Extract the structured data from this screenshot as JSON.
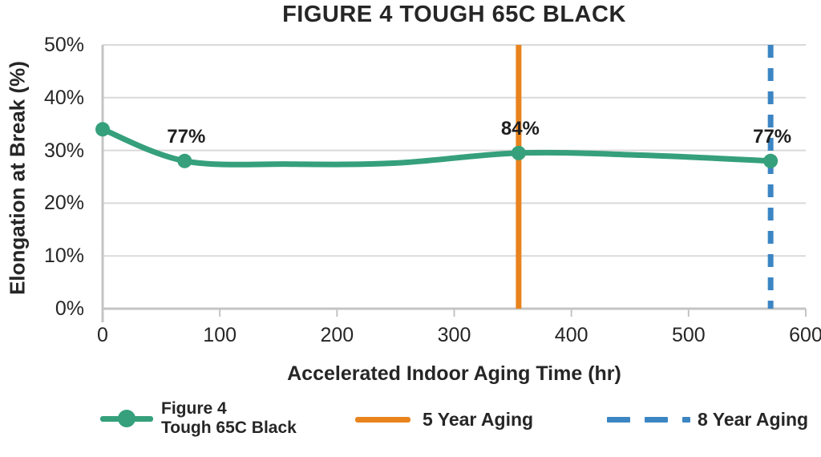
{
  "chart_data": {
    "type": "line",
    "title": "FIGURE 4 TOUGH 65C BLACK",
    "xlabel": "Accelerated Indoor Aging Time (hr)",
    "ylabel": "Elongation at Break (%)",
    "xlim": [
      0,
      600
    ],
    "ylim": [
      0,
      50
    ],
    "grid": "horizontal",
    "legend_position": "bottom",
    "x_ticks": [
      {
        "value": 0,
        "label": "0"
      },
      {
        "value": 100,
        "label": "100"
      },
      {
        "value": 200,
        "label": "200"
      },
      {
        "value": 300,
        "label": "300"
      },
      {
        "value": 400,
        "label": "400"
      },
      {
        "value": 500,
        "label": "500"
      },
      {
        "value": 600,
        "label": "600"
      }
    ],
    "y_ticks": [
      {
        "value": 0,
        "label": "0%"
      },
      {
        "value": 10,
        "label": "10%"
      },
      {
        "value": 20,
        "label": "20%"
      },
      {
        "value": 30,
        "label": "30%"
      },
      {
        "value": 40,
        "label": "40%"
      },
      {
        "value": 50,
        "label": "50%"
      }
    ],
    "series": [
      {
        "name": "Figure 4 Tough 65C Black",
        "color": "#35A07B",
        "curve_points": [
          [
            0,
            34
          ],
          [
            70,
            28
          ],
          [
            160,
            27.4
          ],
          [
            250,
            27.6
          ],
          [
            355,
            29.5
          ],
          [
            460,
            29.1
          ],
          [
            570,
            28
          ]
        ],
        "marker_points": [
          [
            0,
            34
          ],
          [
            70,
            28
          ],
          [
            355,
            29.5
          ],
          [
            570,
            28
          ]
        ],
        "point_labels": [
          {
            "x": 70,
            "y": 28,
            "label": "77%"
          },
          {
            "x": 355,
            "y": 29.5,
            "label": "84%"
          },
          {
            "x": 570,
            "y": 28,
            "label": "77%"
          }
        ]
      }
    ],
    "vlines": [
      {
        "name": "5 Year Aging",
        "x": 355,
        "color": "#E8831D",
        "style": "solid"
      },
      {
        "name": "8 Year Aging",
        "x": 570,
        "color": "#3C85C3",
        "style": "dashed"
      }
    ],
    "grid_color": "#D9D9D9",
    "axis_color": "#C4C4C4"
  },
  "legend": {
    "items": [
      {
        "label_top": "Figure 4",
        "label_bottom": "Tough 65C Black",
        "color": "#35A07B",
        "marker": "line-dot"
      },
      {
        "label": "5 Year Aging",
        "color": "#E8831D",
        "marker": "solid-line"
      },
      {
        "label": "8 Year Aging",
        "color": "#3C85C3",
        "marker": "dashed-line"
      }
    ]
  }
}
